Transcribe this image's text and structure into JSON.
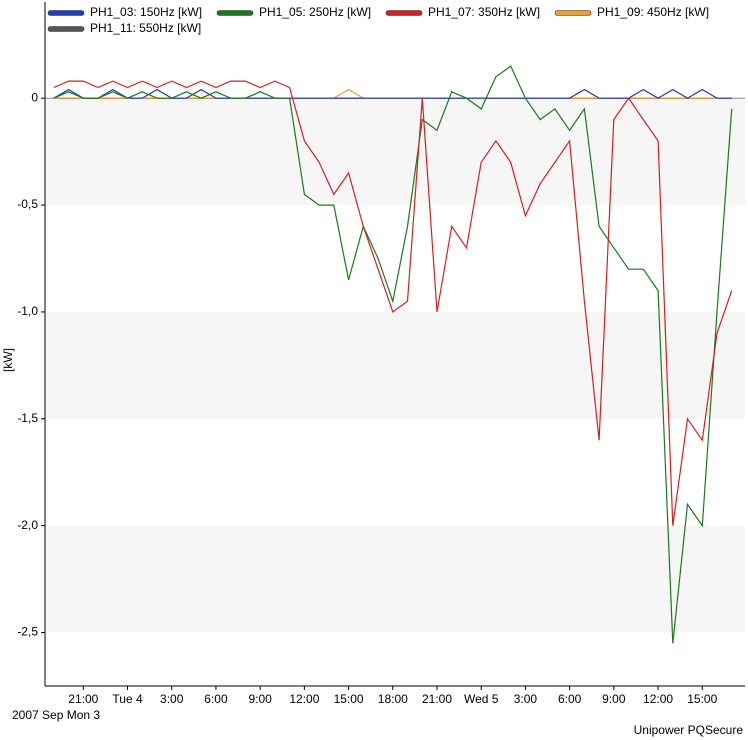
{
  "chart_data": {
    "type": "line",
    "x_label_start": "2007 Sep Mon 3",
    "y_label": "[kW]",
    "footer": "Unipower PQSecure",
    "x": [
      19,
      20,
      21,
      22,
      23,
      24,
      25,
      26,
      27,
      28,
      29,
      30,
      31,
      32,
      33,
      34,
      35,
      36,
      37,
      38,
      39,
      40,
      41,
      42,
      43,
      44,
      45,
      46,
      47,
      48,
      49,
      50,
      51,
      52,
      53,
      54,
      55,
      56,
      57,
      58,
      59,
      60,
      61,
      62,
      63,
      64,
      65
    ],
    "xlim": [
      18.4,
      65.9
    ],
    "xticks": [
      {
        "value": 21,
        "label": "21:00"
      },
      {
        "value": 24,
        "label": "Tue 4"
      },
      {
        "value": 27,
        "label": "3:00"
      },
      {
        "value": 30,
        "label": "6:00"
      },
      {
        "value": 33,
        "label": "9:00"
      },
      {
        "value": 36,
        "label": "12:00"
      },
      {
        "value": 39,
        "label": "15:00"
      },
      {
        "value": 42,
        "label": "18:00"
      },
      {
        "value": 45,
        "label": "21:00"
      },
      {
        "value": 48,
        "label": "Wed 5"
      },
      {
        "value": 51,
        "label": "3:00"
      },
      {
        "value": 54,
        "label": "6:00"
      },
      {
        "value": 57,
        "label": "9:00"
      },
      {
        "value": 60,
        "label": "12:00"
      },
      {
        "value": 63,
        "label": "15:00"
      }
    ],
    "ylim": [
      -2.75,
      0.45
    ],
    "yticks": [
      0,
      {
        "value": -0.5,
        "label": "-0,5"
      },
      {
        "value": -1.0,
        "label": "-1,0"
      },
      {
        "value": -1.5,
        "label": "-1,5"
      },
      {
        "value": -2.0,
        "label": "-2,0"
      },
      {
        "value": -2.5,
        "label": "-2,5"
      }
    ],
    "grid": "bands",
    "series": [
      {
        "name": "PH1_03: 150Hz [kW]",
        "color": "#1f3fbf",
        "values": [
          0,
          0.04,
          0,
          0,
          0.04,
          0,
          0,
          0.04,
          0,
          0,
          0.04,
          0,
          0,
          0,
          0,
          0,
          0,
          0,
          0,
          0,
          0,
          0,
          0,
          0,
          0,
          0,
          0,
          0,
          0,
          0,
          0,
          0,
          0,
          0,
          0,
          0,
          0.04,
          0,
          0,
          0,
          0.04,
          0,
          0.04,
          0,
          0.04,
          0,
          0
        ]
      },
      {
        "name": "PH1_05: 250Hz [kW]",
        "color": "#1a7a1a",
        "values": [
          0,
          0.03,
          0,
          0,
          0.03,
          0,
          0.03,
          0,
          0,
          0.03,
          0,
          0.03,
          0,
          0,
          0.03,
          0,
          0,
          -0.45,
          -0.5,
          -0.5,
          -0.85,
          -0.6,
          -0.75,
          -0.95,
          -0.6,
          -0.1,
          -0.15,
          0.03,
          0,
          -0.05,
          0.1,
          0.15,
          0,
          -0.1,
          -0.05,
          -0.15,
          -0.05,
          -0.6,
          -0.7,
          -0.8,
          -0.8,
          -0.9,
          -2.55,
          -1.9,
          -2.0,
          -1.0,
          -0.05
        ]
      },
      {
        "name": "PH1_07: 350Hz [kW]",
        "color": "#d42020",
        "values": [
          0.05,
          0.08,
          0.08,
          0.05,
          0.08,
          0.05,
          0.08,
          0.05,
          0.08,
          0.05,
          0.08,
          0.05,
          0.08,
          0.08,
          0.05,
          0.08,
          0.05,
          -0.2,
          -0.3,
          -0.45,
          -0.35,
          -0.6,
          -0.8,
          -1.0,
          -0.95,
          0,
          -1.0,
          -0.6,
          -0.7,
          -0.3,
          -0.2,
          -0.3,
          -0.55,
          -0.4,
          -0.3,
          -0.2,
          -0.95,
          -1.6,
          -0.1,
          0,
          -0.1,
          -0.2,
          -2.0,
          -1.5,
          -1.6,
          -1.1,
          -0.9
        ]
      },
      {
        "name": "PH1_09: 450Hz [kW]",
        "color": "#f0a030",
        "values": [
          0,
          0,
          0,
          0,
          0,
          0,
          0,
          0,
          0,
          0,
          0,
          0,
          0,
          0,
          0,
          0,
          0,
          0,
          0,
          0,
          0.04,
          0,
          0,
          0,
          0,
          0,
          0,
          0,
          0,
          0,
          0,
          0,
          0,
          0,
          0,
          0,
          0,
          0,
          0,
          0,
          0,
          0,
          0,
          0,
          0,
          0,
          0
        ]
      },
      {
        "name": "PH1_11: 550Hz [kW]",
        "color": "#555555",
        "values": [
          0,
          0,
          0,
          0,
          0,
          0,
          0,
          0,
          0,
          0,
          0,
          0,
          0,
          0,
          0,
          0,
          0,
          0,
          0,
          0,
          0,
          0,
          0,
          0,
          0,
          0,
          0,
          0,
          0,
          0,
          0,
          0,
          0,
          0,
          0,
          0,
          0,
          0,
          0,
          0,
          0,
          0,
          0,
          0,
          0,
          0,
          0
        ]
      }
    ]
  }
}
